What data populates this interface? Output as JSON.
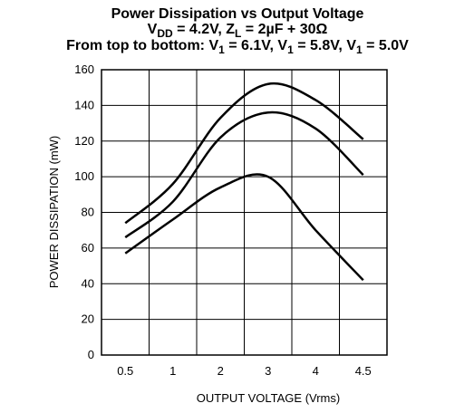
{
  "chart_data": {
    "type": "line",
    "title": "Power Dissipation vs Output Voltage",
    "subtitle": [
      "V",
      "DD",
      " = 4.2V, Z",
      "L",
      " = 2µF + 30Ω"
    ],
    "subtitle2": [
      "From top to bottom: V",
      "1",
      " = 6.1V, V",
      "1",
      " = 5.8V, V",
      "1",
      " = 5.0V"
    ],
    "x_label": "OUTPUT VOLTAGE (Vrms)",
    "y_label": "POWER DISSIPATION (mW)",
    "categories": [
      "0.5",
      "1",
      "2",
      "3",
      "4",
      "4.5"
    ],
    "series": [
      {
        "color": "#000000",
        "values": [
          74,
          96,
          133,
          152,
          143,
          121
        ]
      },
      {
        "color": "#000000",
        "values": [
          66,
          86,
          122,
          136,
          127,
          101
        ]
      },
      {
        "color": "#000000",
        "values": [
          57,
          76,
          94,
          100,
          70,
          42
        ]
      }
    ],
    "ylim": [
      0,
      160
    ],
    "yticks": [
      0,
      20,
      40,
      60,
      80,
      100,
      120,
      140,
      160
    ],
    "grid": true
  }
}
